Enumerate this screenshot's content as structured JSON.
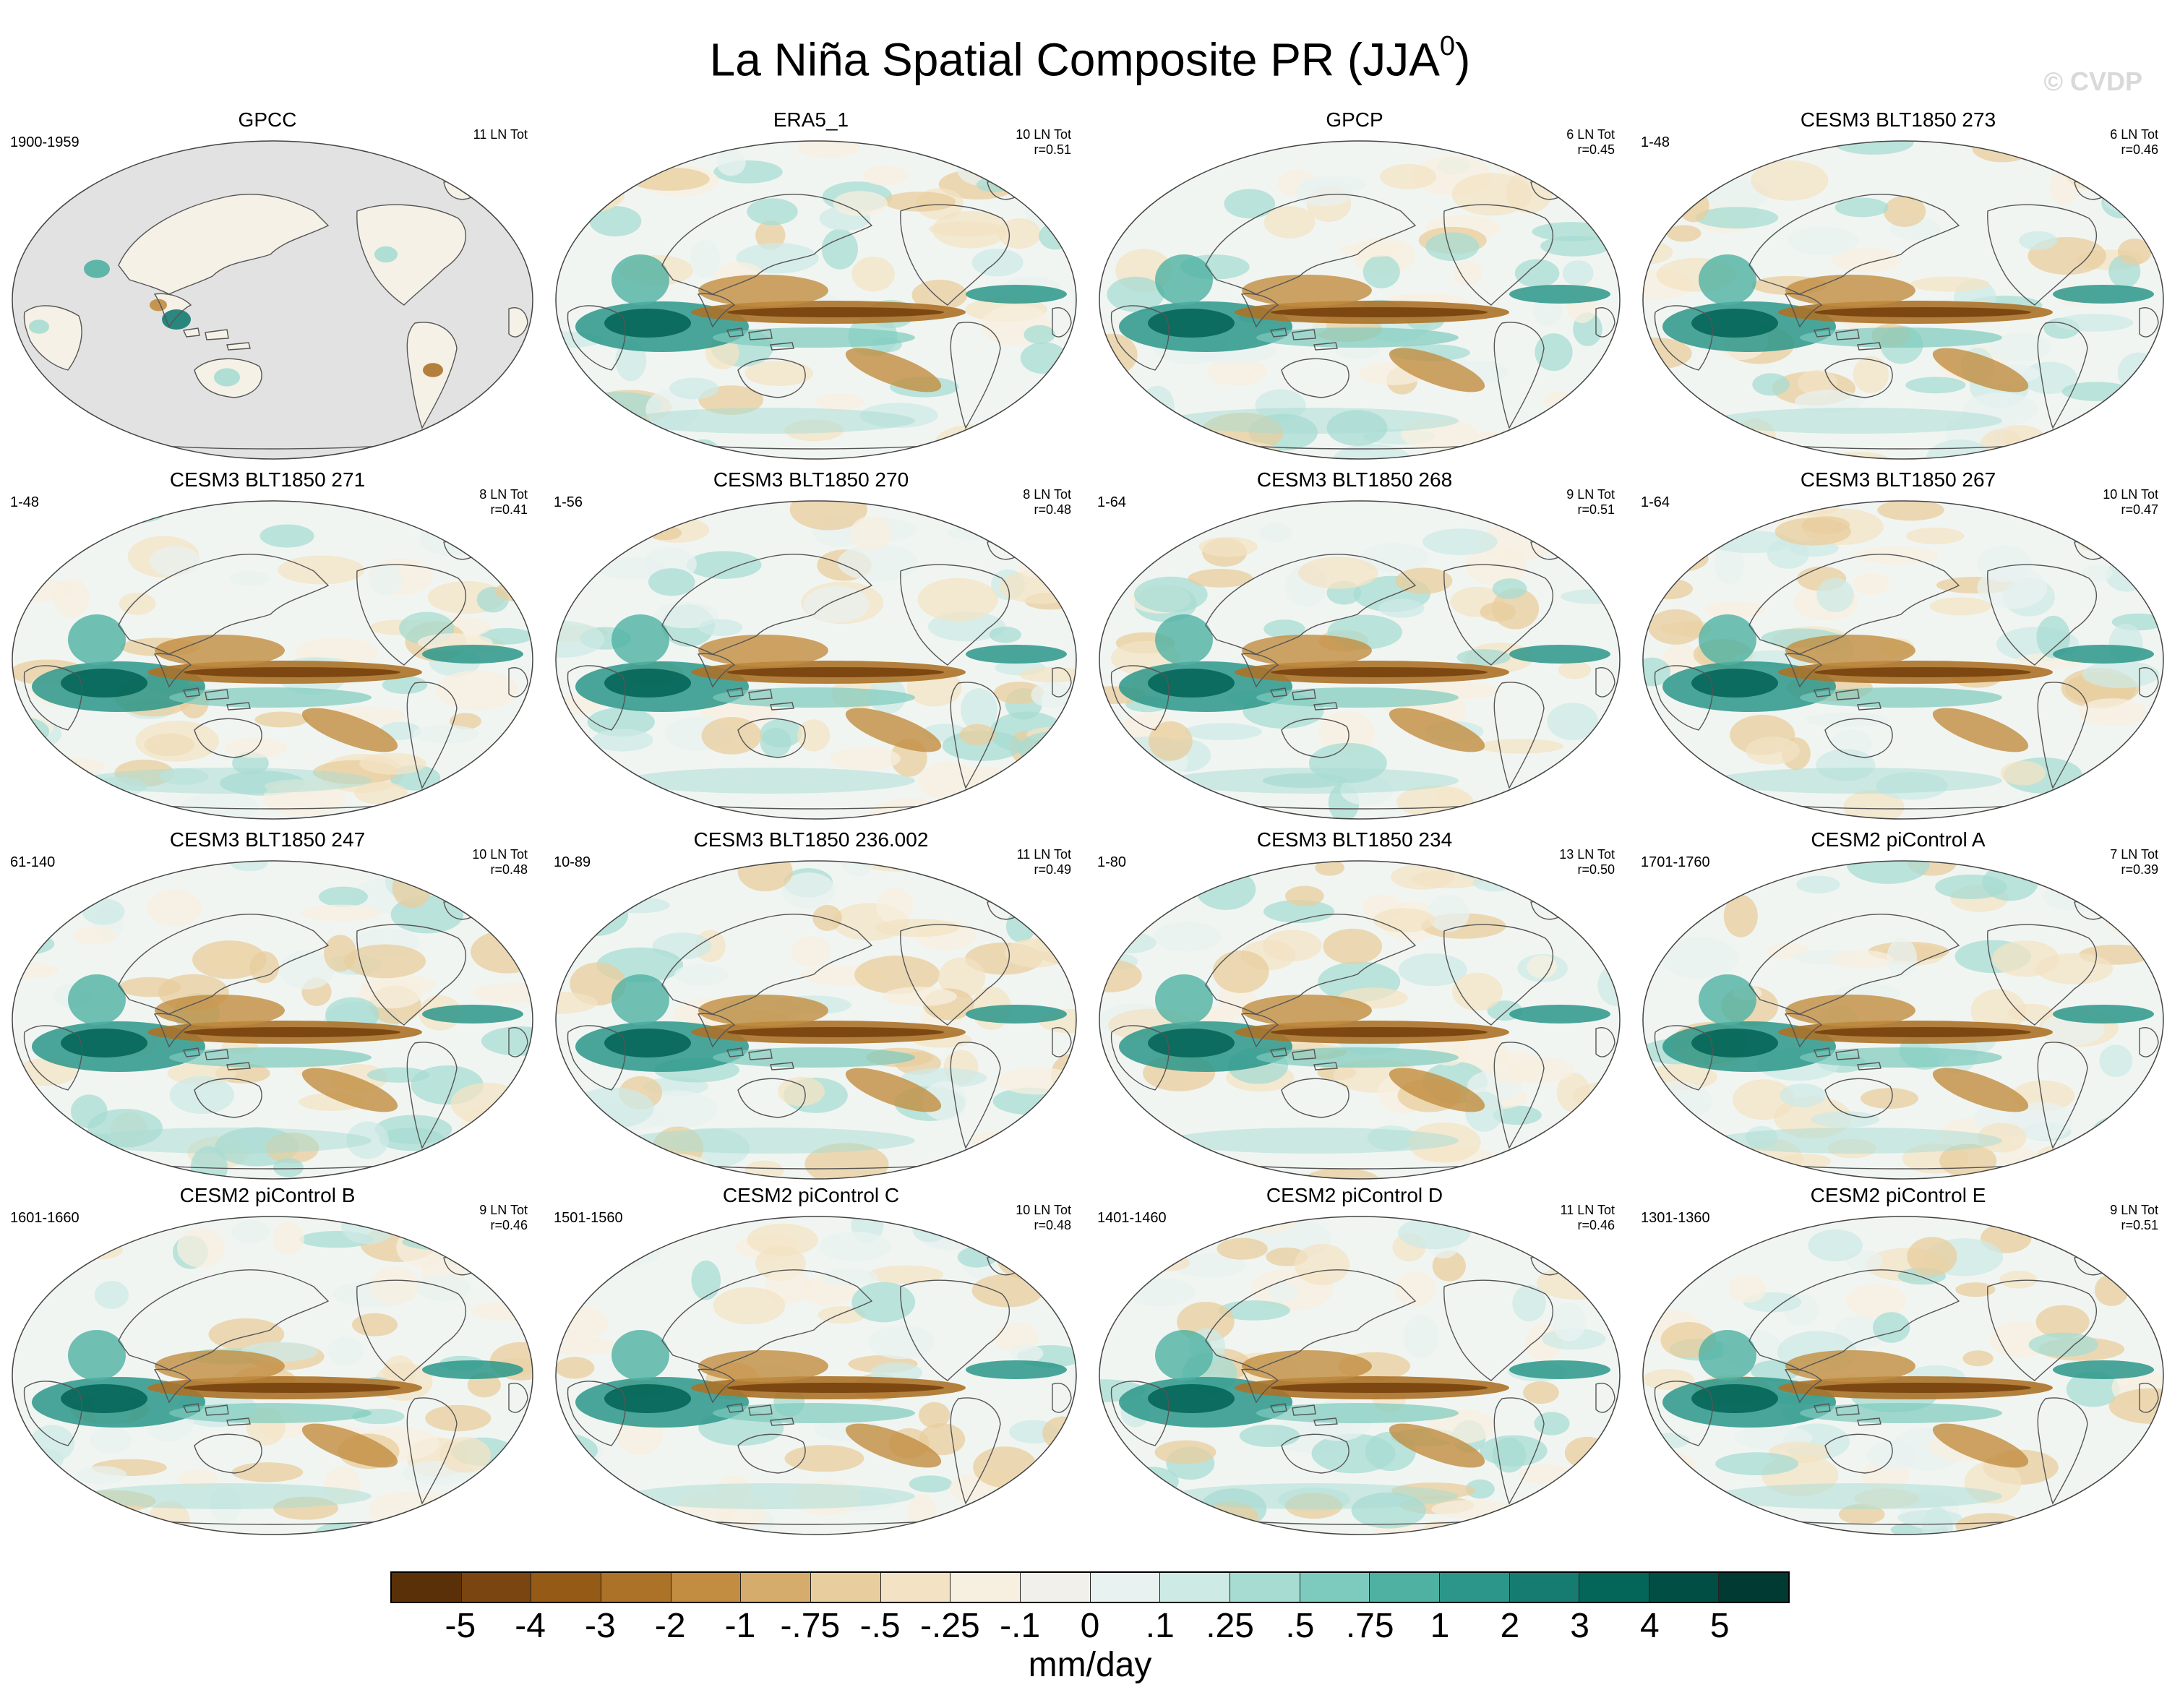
{
  "figure": {
    "title_main": "La Niña Spatial Composite PR (JJA",
    "title_sup": "0",
    "title_end": ")",
    "watermark": "© CVDP",
    "units": "mm/day"
  },
  "panels": [
    {
      "title": "GPCC",
      "period": "1900-1959",
      "count": "11 LN Tot",
      "corr": "",
      "land_only": true
    },
    {
      "title": "ERA5_1",
      "period": "",
      "count": "10 LN Tot",
      "corr": "r=0.51",
      "land_only": false
    },
    {
      "title": "GPCP",
      "period": "",
      "count": "6 LN Tot",
      "corr": "r=0.45",
      "land_only": false
    },
    {
      "title": "CESM3 BLT1850 273",
      "period": "1-48",
      "count": "6 LN Tot",
      "corr": "r=0.46",
      "land_only": false
    },
    {
      "title": "CESM3 BLT1850 271",
      "period": "1-48",
      "count": "8 LN Tot",
      "corr": "r=0.41",
      "land_only": false
    },
    {
      "title": "CESM3 BLT1850 270",
      "period": "1-56",
      "count": "8 LN Tot",
      "corr": "r=0.48",
      "land_only": false
    },
    {
      "title": "CESM3 BLT1850 268",
      "period": "1-64",
      "count": "9 LN Tot",
      "corr": "r=0.51",
      "land_only": false
    },
    {
      "title": "CESM3 BLT1850 267",
      "period": "1-64",
      "count": "10 LN Tot",
      "corr": "r=0.47",
      "land_only": false
    },
    {
      "title": "CESM3 BLT1850 247",
      "period": "61-140",
      "count": "10 LN Tot",
      "corr": "r=0.48",
      "land_only": false
    },
    {
      "title": "CESM3 BLT1850 236.002",
      "period": "10-89",
      "count": "11 LN Tot",
      "corr": "r=0.49",
      "land_only": false
    },
    {
      "title": "CESM3 BLT1850 234",
      "period": "1-80",
      "count": "13 LN Tot",
      "corr": "r=0.50",
      "land_only": false
    },
    {
      "title": "CESM2 piControl A",
      "period": "1701-1760",
      "count": "7 LN Tot",
      "corr": "r=0.39",
      "land_only": false
    },
    {
      "title": "CESM2 piControl B",
      "period": "1601-1660",
      "count": "9 LN Tot",
      "corr": "r=0.46",
      "land_only": false
    },
    {
      "title": "CESM2 piControl C",
      "period": "1501-1560",
      "count": "10 LN Tot",
      "corr": "r=0.48",
      "land_only": false
    },
    {
      "title": "CESM2 piControl D",
      "period": "1401-1460",
      "count": "11 LN Tot",
      "corr": "r=0.46",
      "land_only": false
    },
    {
      "title": "CESM2 piControl E",
      "period": "1301-1360",
      "count": "9 LN Tot",
      "corr": "r=0.51",
      "land_only": false
    }
  ],
  "colorbar": {
    "colors": [
      "#5a3008",
      "#7a4510",
      "#955a16",
      "#ac7228",
      "#c28d40",
      "#d6ac6c",
      "#e8ce9e",
      "#f3e3c4",
      "#f7efdf",
      "#f2f0eb",
      "#e8f2f0",
      "#cdeae5",
      "#a7dcd3",
      "#7dcbbe",
      "#4fb1a2",
      "#2c968a",
      "#167c72",
      "#046659",
      "#004e44",
      "#003a32"
    ],
    "tick_labels": [
      "-5",
      "-4",
      "-3",
      "-2",
      "-1",
      "-.75",
      "-.5",
      "-.25",
      "-.1",
      "0",
      ".1",
      ".25",
      ".5",
      ".75",
      "1",
      "2",
      "3",
      "4",
      "5"
    ]
  },
  "map_colors": {
    "land_mask": "#e2e2e2",
    "neutral": "#f1f5f2",
    "coast": "#555555"
  }
}
